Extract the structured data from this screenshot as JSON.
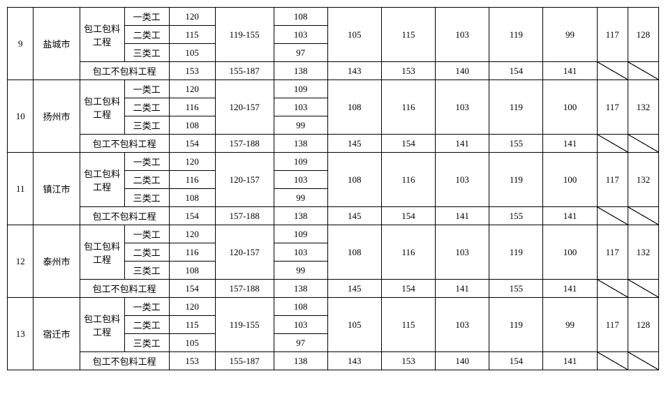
{
  "labels": {
    "proj_incl": "包工包料工程",
    "proj_excl": "包工不包料工程",
    "work1": "一类工",
    "work2": "二类工",
    "work3": "三类工"
  },
  "rows": [
    {
      "idx": "9",
      "city": "盐城市",
      "incl": {
        "range": "119-155",
        "w1": {
          "v1": "120",
          "v3": "108"
        },
        "w2": {
          "v1": "115",
          "v3": "103"
        },
        "w3": {
          "v1": "105",
          "v3": "97"
        },
        "m4": "105",
        "m5": "115",
        "m6": "103",
        "m7": "119",
        "m8": "99",
        "m9": "117",
        "m10": "128"
      },
      "excl": {
        "v1": "153",
        "v2": "155-187",
        "v3": "138",
        "v4": "143",
        "v5": "153",
        "v6": "140",
        "v7": "154",
        "v8": "141"
      }
    },
    {
      "idx": "10",
      "city": "扬州市",
      "incl": {
        "range": "120-157",
        "w1": {
          "v1": "120",
          "v3": "109"
        },
        "w2": {
          "v1": "116",
          "v3": "103"
        },
        "w3": {
          "v1": "108",
          "v3": "99"
        },
        "m4": "108",
        "m5": "116",
        "m6": "103",
        "m7": "119",
        "m8": "100",
        "m9": "117",
        "m10": "132"
      },
      "excl": {
        "v1": "154",
        "v2": "157-188",
        "v3": "138",
        "v4": "145",
        "v5": "154",
        "v6": "141",
        "v7": "155",
        "v8": "141"
      }
    },
    {
      "idx": "11",
      "city": "镇江市",
      "incl": {
        "range": "120-157",
        "w1": {
          "v1": "120",
          "v3": "109"
        },
        "w2": {
          "v1": "116",
          "v3": "103"
        },
        "w3": {
          "v1": "108",
          "v3": "99"
        },
        "m4": "108",
        "m5": "116",
        "m6": "103",
        "m7": "119",
        "m8": "100",
        "m9": "117",
        "m10": "132"
      },
      "excl": {
        "v1": "154",
        "v2": "157-188",
        "v3": "138",
        "v4": "145",
        "v5": "154",
        "v6": "141",
        "v7": "155",
        "v8": "141"
      }
    },
    {
      "idx": "12",
      "city": "泰州市",
      "incl": {
        "range": "120-157",
        "w1": {
          "v1": "120",
          "v3": "109"
        },
        "w2": {
          "v1": "116",
          "v3": "103"
        },
        "w3": {
          "v1": "108",
          "v3": "99"
        },
        "m4": "108",
        "m5": "116",
        "m6": "103",
        "m7": "119",
        "m8": "100",
        "m9": "117",
        "m10": "132"
      },
      "excl": {
        "v1": "154",
        "v2": "157-188",
        "v3": "138",
        "v4": "145",
        "v5": "154",
        "v6": "141",
        "v7": "155",
        "v8": "141"
      }
    },
    {
      "idx": "13",
      "city": "宿迁市",
      "incl": {
        "range": "119-155",
        "w1": {
          "v1": "120",
          "v3": "108"
        },
        "w2": {
          "v1": "115",
          "v3": "103"
        },
        "w3": {
          "v1": "105",
          "v3": "97"
        },
        "m4": "105",
        "m5": "115",
        "m6": "103",
        "m7": "119",
        "m8": "99",
        "m9": "117",
        "m10": "128"
      },
      "excl": {
        "v1": "153",
        "v2": "155-187",
        "v3": "138",
        "v4": "143",
        "v5": "153",
        "v6": "140",
        "v7": "154",
        "v8": "141"
      }
    }
  ]
}
